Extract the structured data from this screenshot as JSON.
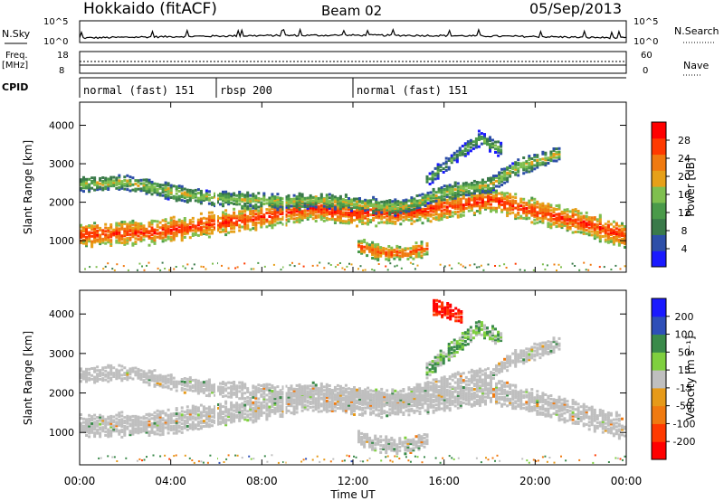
{
  "header": {
    "station": "Hokkaido (fitACF)",
    "beam": "Beam 02",
    "date": "05/Sep/2013"
  },
  "top_panels": {
    "nsky_label": "N.Sky",
    "nsky_ticks": [
      "10^5",
      "10^0"
    ],
    "nsearch_label": "N.Search",
    "nsearch_ticks": [
      "10^5",
      "10^0"
    ],
    "freq_label_line1": "Freq.",
    "freq_label_line2": "[MHz]",
    "freq_ticks": [
      "18",
      "8"
    ],
    "nave_label": "Nave",
    "nave_ticks": [
      "60",
      "0"
    ],
    "cpid_label": "CPID",
    "cpid_segments": [
      {
        "label": "normal (fast) 151",
        "start_hour": 0,
        "end_hour": 6
      },
      {
        "label": "rbsp 200",
        "start_hour": 6,
        "end_hour": 12
      },
      {
        "label": "normal (fast) 151",
        "start_hour": 12,
        "end_hour": 24
      }
    ]
  },
  "chart_data": [
    {
      "type": "heatmap",
      "title": "",
      "xlabel": "Time UT",
      "ylabel": "Slant Range [km]",
      "x_ticks": [
        "00:00",
        "04:00",
        "08:00",
        "12:00",
        "16:00",
        "20:00",
        "00:00"
      ],
      "x_range_hours": [
        0,
        24
      ],
      "ylim": [
        180,
        4600
      ],
      "y_ticks": [
        1000,
        2000,
        3000,
        4000
      ],
      "colorbar": {
        "label": "Power [dB]",
        "ticks": [
          4,
          8,
          12,
          16,
          20,
          24,
          28
        ],
        "colors": [
          "#1a1aff",
          "#2d4fa8",
          "#3a7a4a",
          "#4a9a4a",
          "#7fbf4f",
          "#e6a019",
          "#f07a10",
          "#ff3a00",
          "#ff0000"
        ]
      },
      "bands": [
        {
          "name": "main E/F echo",
          "points": [
            [
              0,
              1200
            ],
            [
              3,
              1250
            ],
            [
              5.5,
              1450
            ],
            [
              8,
              1650
            ],
            [
              10,
              1900
            ],
            [
              12,
              1750
            ],
            [
              14,
              1750
            ],
            [
              16,
              1900
            ],
            [
              18,
              2100
            ],
            [
              20,
              1800
            ],
            [
              22,
              1500
            ],
            [
              24,
              1150
            ]
          ],
          "level_db": 24
        },
        {
          "name": "upper band",
          "points": [
            [
              0,
              2500
            ],
            [
              2,
              2550
            ],
            [
              5,
              2200
            ],
            [
              7,
              2100
            ],
            [
              9,
              2050
            ],
            [
              10.5,
              2100
            ],
            [
              12,
              2000
            ],
            [
              14,
              1900
            ],
            [
              16,
              2300
            ],
            [
              18,
              2500
            ],
            [
              19,
              2900
            ],
            [
              21,
              3300
            ]
          ],
          "level_db": 14
        },
        {
          "name": "lower band",
          "points": [
            [
              12.2,
              900
            ],
            [
              13,
              750
            ],
            [
              14.2,
              700
            ],
            [
              15.2,
              850
            ]
          ],
          "level_db": 22
        },
        {
          "name": "late high echo",
          "points": [
            [
              15.2,
              2600
            ],
            [
              16,
              3000
            ],
            [
              17.5,
              3700
            ],
            [
              18.5,
              3400
            ]
          ],
          "level_db": 10
        }
      ]
    },
    {
      "type": "heatmap",
      "title": "",
      "xlabel": "Time UT",
      "ylabel": "Slant Range [km]",
      "x_ticks": [
        "00:00",
        "04:00",
        "08:00",
        "12:00",
        "16:00",
        "20:00",
        "00:00"
      ],
      "x_range_hours": [
        0,
        24
      ],
      "ylim": [
        180,
        4600
      ],
      "y_ticks": [
        1000,
        2000,
        3000,
        4000
      ],
      "colorbar": {
        "label": "Velocity [m s⁻¹]",
        "ticks": [
          200,
          100,
          50,
          15,
          -15,
          -50,
          -100,
          -200
        ],
        "colors": [
          "#1a1aff",
          "#2e4fb8",
          "#3a8a4a",
          "#7fcf3f",
          "#bfbfbf",
          "#e69a19",
          "#f07a10",
          "#ff3a00",
          "#ff0000"
        ]
      },
      "bands": [
        {
          "name": "main echo (ground scatter)",
          "points": [
            [
              0,
              1200
            ],
            [
              3,
              1250
            ],
            [
              5.5,
              1450
            ],
            [
              8,
              1650
            ],
            [
              10,
              1900
            ],
            [
              12,
              1750
            ],
            [
              14,
              1750
            ],
            [
              16,
              1900
            ],
            [
              18,
              2100
            ],
            [
              20,
              1800
            ],
            [
              22,
              1500
            ],
            [
              24,
              1150
            ]
          ],
          "velocity": 0
        },
        {
          "name": "upper band",
          "points": [
            [
              0,
              2500
            ],
            [
              2,
              2550
            ],
            [
              5,
              2200
            ],
            [
              7,
              2100
            ],
            [
              9,
              2050
            ],
            [
              10.5,
              2100
            ],
            [
              12,
              2000
            ],
            [
              14,
              1900
            ],
            [
              16,
              2300
            ],
            [
              18,
              2500
            ],
            [
              19,
              2900
            ],
            [
              21,
              3300
            ]
          ],
          "velocity": 0
        },
        {
          "name": "lower band",
          "points": [
            [
              12.2,
              900
            ],
            [
              13,
              750
            ],
            [
              14.2,
              700
            ],
            [
              15.2,
              850
            ]
          ],
          "velocity": 0
        },
        {
          "name": "late high echo",
          "points": [
            [
              15.2,
              2600
            ],
            [
              16,
              3000
            ],
            [
              17.5,
              3700
            ],
            [
              18.5,
              3400
            ]
          ],
          "velocity": 30
        },
        {
          "name": "high-range patch",
          "points": [
            [
              15.5,
              4200
            ],
            [
              16.2,
              4100
            ],
            [
              16.8,
              3950
            ]
          ],
          "velocity": -150
        }
      ]
    }
  ]
}
